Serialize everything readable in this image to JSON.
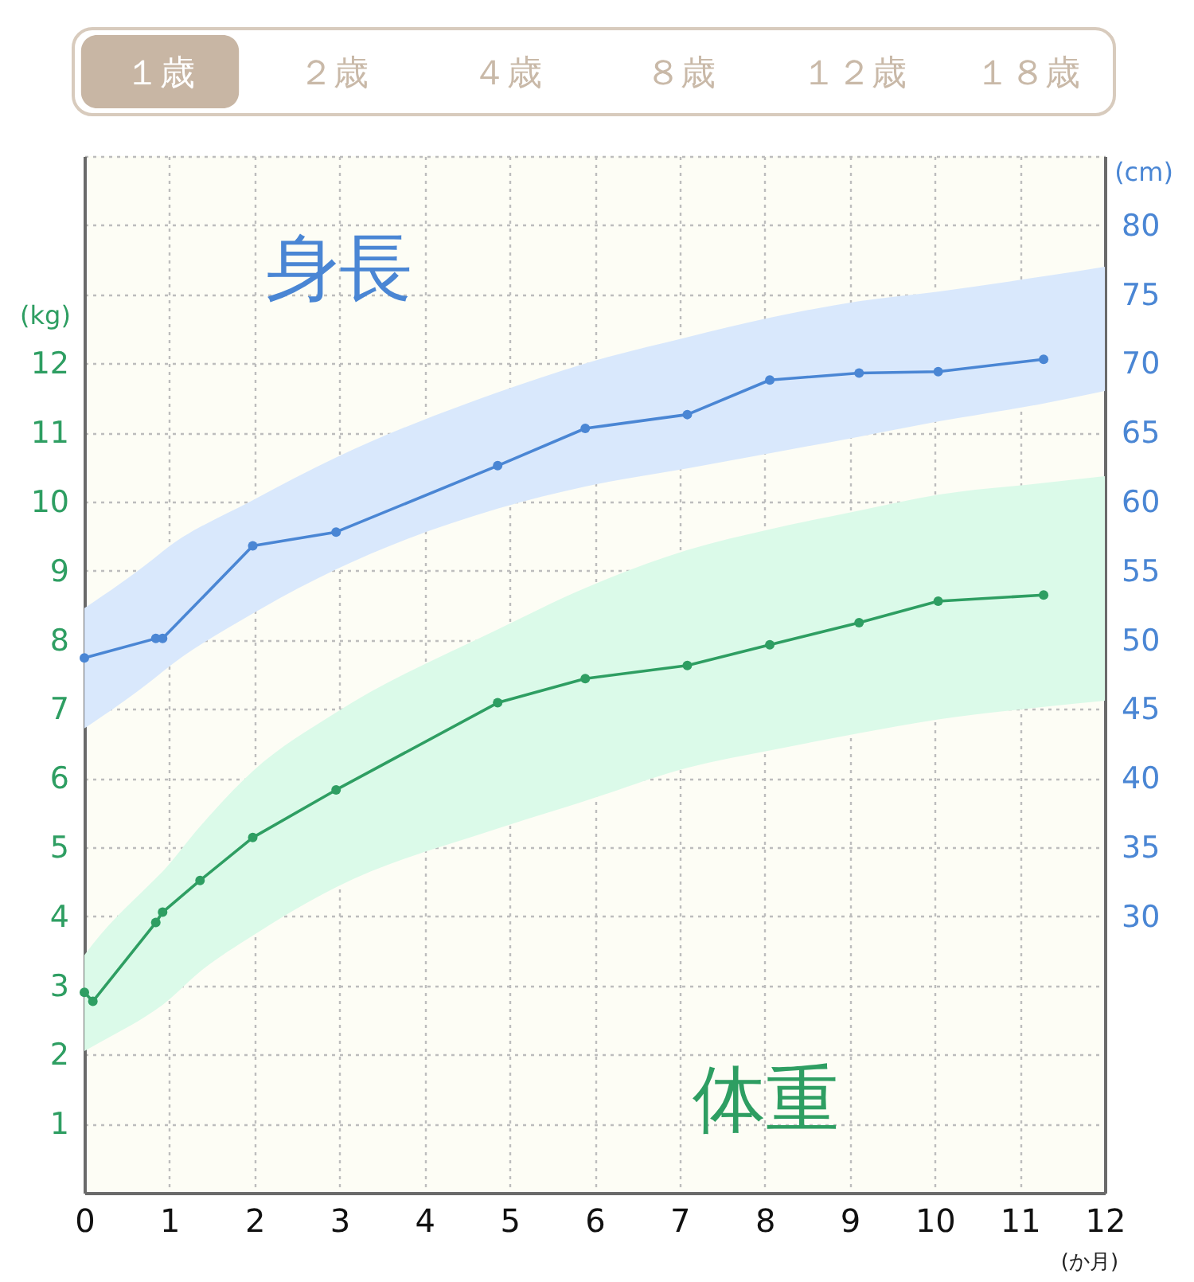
{
  "chart_data": [
    {
      "type": "other",
      "categories": [
        "１歳",
        "２歳",
        "４歳",
        "８歳",
        "１２歳",
        "１８歳"
      ],
      "colors": [
        "#c8b6a4",
        null,
        null,
        null,
        null,
        null
      ]
    },
    {
      "type": "line",
      "xlabel": "(か月)",
      "ylabel": "(kg)",
      "y2label": "(cm)",
      "xlim": [
        0,
        12
      ],
      "xticks": [
        0,
        1,
        2,
        3,
        4,
        5,
        6,
        7,
        8,
        9,
        10,
        11,
        12
      ],
      "ylim": [
        0,
        15
      ],
      "yticks": [
        1,
        2,
        3,
        4,
        5,
        6,
        7,
        8,
        9,
        10,
        11,
        12,
        {
          "value": 13,
          "label": null
        },
        {
          "value": 14,
          "label": null
        },
        {
          "value": 15,
          "label": null
        }
      ],
      "y2lim": [
        10,
        85
      ],
      "y2ticks": [
        30,
        35,
        40,
        45,
        50,
        55,
        60,
        65,
        70,
        75,
        80
      ],
      "grid": true,
      "marker": "circle",
      "line_style": "solid",
      "series": [
        {
          "name": "身長",
          "type": "line",
          "axis": "y2",
          "color": "#4a86d4",
          "x": [
            0,
            0.84,
            0.92,
            1.98,
            2.96,
            4.86,
            5.89,
            7.09,
            8.06,
            9.11,
            10.04,
            11.28,
            12
          ],
          "values": [
            48.7,
            50.1,
            50.1,
            56.8,
            57.8,
            62.6,
            65.3,
            66.3,
            68.8,
            69.3,
            69.4,
            70.3,
            null
          ],
          "lower": [
            43.6,
            47.3,
            47.7,
            51.9,
            55.1,
            59.5,
            61.1,
            62.4,
            63.5,
            64.7,
            65.8,
            67.1,
            68.0
          ],
          "upper": [
            52.3,
            56.0,
            56.4,
            60.1,
            63.2,
            67.9,
            70.0,
            71.9,
            73.3,
            74.5,
            75.2,
            76.3,
            77.0
          ]
        },
        {
          "name": "体重",
          "type": "line",
          "axis": "y",
          "color": "#2e9e62",
          "x": [
            0,
            0.1,
            0.84,
            0.92,
            1.36,
            1.98,
            2.96,
            4.86,
            5.89,
            7.09,
            8.06,
            9.11,
            10.04,
            11.28,
            12
          ],
          "values": [
            2.9,
            2.77,
            3.91,
            4.06,
            4.52,
            5.14,
            5.83,
            7.09,
            7.44,
            7.63,
            7.93,
            8.25,
            8.56,
            8.65,
            null
          ],
          "lower": [
            2.05,
            2.12,
            2.65,
            2.72,
            3.2,
            3.72,
            4.42,
            5.27,
            5.67,
            6.15,
            6.4,
            6.65,
            6.85,
            7.03,
            7.12
          ],
          "upper": [
            3.44,
            3.6,
            4.55,
            4.65,
            5.3,
            6.1,
            6.95,
            8.15,
            8.75,
            9.3,
            9.6,
            9.87,
            10.1,
            10.27,
            10.37
          ]
        }
      ]
    }
  ]
}
